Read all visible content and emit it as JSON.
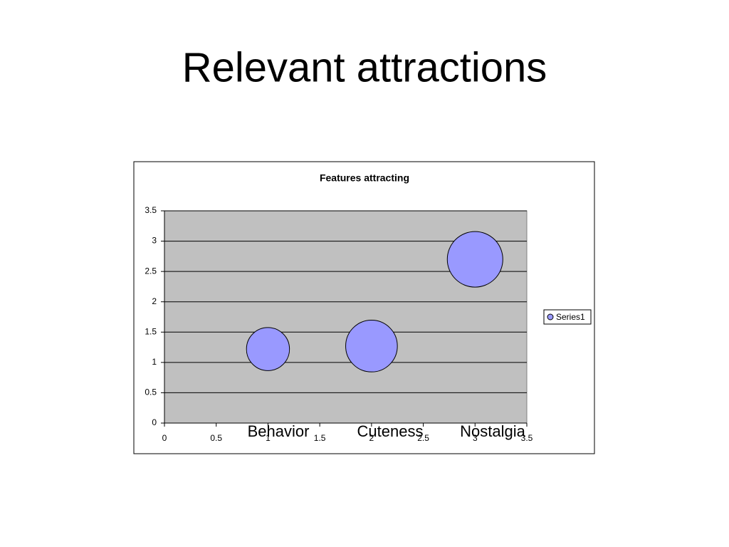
{
  "slide_title": "Relevant attractions",
  "chart_data": {
    "type": "bubble",
    "title": "Features attracting",
    "x": [
      1,
      2,
      3
    ],
    "series": [
      {
        "name": "Series1",
        "color": "#9999ff",
        "values": [
          1.22,
          1.27,
          2.7
        ],
        "sizes": [
          9,
          13,
          15
        ]
      }
    ],
    "xlim": [
      0,
      3.5
    ],
    "xticks": [
      0,
      0.5,
      1,
      1.5,
      2,
      2.5,
      3,
      3.5
    ],
    "ylim": [
      0,
      3.5
    ],
    "yticks": [
      0,
      0.5,
      1,
      1.5,
      2,
      2.5,
      3,
      3.5
    ],
    "grid": true,
    "legend": "right",
    "annotations": [
      "Behavior",
      "Cuteness",
      "Nostalgia"
    ]
  }
}
